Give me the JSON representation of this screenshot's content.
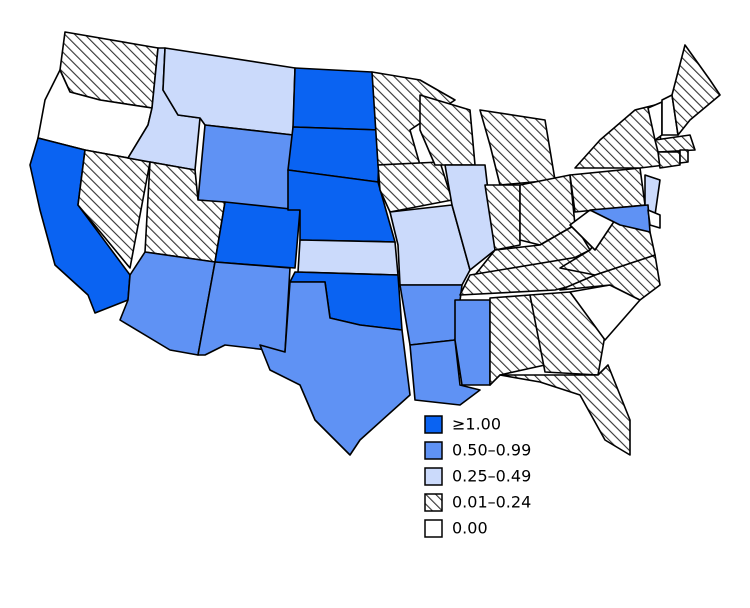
{
  "legend": {
    "items": [
      {
        "label": "≥1.00",
        "color": "#0a63f2"
      },
      {
        "label": "0.50–0.99",
        "color": "#5f92f4"
      },
      {
        "label": "0.25–0.49",
        "color": "#cbdafb"
      },
      {
        "label": "0.01–0.24",
        "color": "#ffffff",
        "pattern": "diagonal-hatch"
      },
      {
        "label": "0.00",
        "color": "#ffffff"
      }
    ]
  }
}
